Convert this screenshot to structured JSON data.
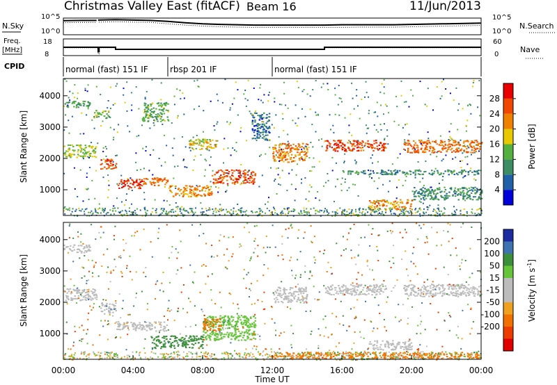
{
  "header": {
    "title": "Christmas Valley East (fitACF)",
    "beam": "Beam 16",
    "date": "11/Jun/2013"
  },
  "summary_panels": {
    "sky_label": "N.Sky",
    "search_label": "N.Search",
    "noise_ticks": [
      "10^5",
      "10^0"
    ],
    "freq_label_1": "Freq.",
    "freq_label_2": "[MHz]",
    "freq_ticks": [
      "18",
      "8"
    ],
    "nave_label": "Nave",
    "nave_ticks": [
      "60",
      "0"
    ],
    "cpid_label": "CPID",
    "cpid_segments": [
      {
        "label": "normal (fast) 151 IF",
        "start_h": 0,
        "end_h": 6
      },
      {
        "label": "rbsp 201 IF",
        "start_h": 6,
        "end_h": 12
      },
      {
        "label": "normal (fast) 151 IF",
        "start_h": 12,
        "end_h": 24
      }
    ]
  },
  "colors": {
    "power_scale": [
      "#0000d8",
      "#2060a8",
      "#3c8c64",
      "#56b040",
      "#e8c800",
      "#f08000",
      "#f04800",
      "#e80000"
    ],
    "velocity_scale": [
      "#1c2ca0",
      "#3e72b0",
      "#3b8f3b",
      "#66c43a",
      "#bcbcbc",
      "#bcbcbc",
      "#f0a020",
      "#f07000",
      "#ec3c00",
      "#e00000"
    ]
  },
  "chart_data": [
    {
      "type": "line",
      "title": "N.Sky / N.Search",
      "x": [
        0,
        1,
        1.9,
        2,
        3,
        4,
        5,
        6,
        7,
        8,
        9,
        10,
        11,
        12,
        13,
        14,
        15,
        16,
        17,
        18,
        19,
        20,
        21,
        22,
        23,
        24
      ],
      "series": [
        {
          "name": "N.Sky",
          "values": [
            4.2,
            4.3,
            4.3,
            4.4,
            4.5,
            4.4,
            4.3,
            4.0,
            3.6,
            3.3,
            3.1,
            3.0,
            2.9,
            2.9,
            2.9,
            2.9,
            2.9,
            3.0,
            3.0,
            3.0,
            3.0,
            3.1,
            3.2,
            3.3,
            3.4,
            3.5
          ]
        },
        {
          "name": "N.Search",
          "values": [
            3.6,
            3.7,
            3.7,
            3.8,
            3.9,
            3.8,
            3.7,
            3.3,
            2.9,
            2.6,
            2.4,
            2.3,
            2.2,
            2.2,
            2.2,
            2.2,
            2.2,
            2.2,
            2.3,
            2.3,
            2.3,
            2.4,
            2.5,
            2.6,
            2.7,
            2.8
          ]
        }
      ],
      "ylim": [
        0,
        5
      ]
    },
    {
      "type": "line",
      "title": "Freq. / Nave",
      "x": [
        0,
        1.9,
        2.0,
        2.05,
        2.85,
        3.0,
        6,
        8,
        12,
        14,
        14.9,
        15.0,
        20,
        24
      ],
      "series": [
        {
          "name": "Freq.",
          "values": [
            14,
            14,
            6.5,
            14,
            14,
            10.5,
            10.5,
            10.5,
            10.5,
            10.5,
            10.5,
            14,
            14,
            14
          ]
        },
        {
          "name": "Nave",
          "values": [
            28,
            28,
            6,
            28,
            28,
            22,
            22,
            22,
            22,
            22,
            22,
            28,
            28,
            28
          ]
        }
      ],
      "ylim_freq": [
        8,
        18
      ],
      "ylim_nave": [
        0,
        60
      ]
    },
    {
      "type": "heatmap",
      "title": "Power",
      "xlabel": "Time UT",
      "ylabel": "Slant Range [km]",
      "x_ticks": [
        "00:00",
        "04:00",
        "08:00",
        "12:00",
        "16:00",
        "20:00",
        "00:00"
      ],
      "xlim": [
        0,
        24
      ],
      "y_ticks": [
        1000,
        2000,
        3000,
        4000
      ],
      "ylim": [
        180,
        4550
      ],
      "colorbar": {
        "label": "Power [dB]",
        "ticks": [
          4,
          8,
          12,
          16,
          20,
          24,
          28
        ],
        "range": [
          0,
          32
        ]
      },
      "features": [
        {
          "t": [
            0,
            1.9
          ],
          "r": [
            2050,
            2450
          ],
          "v": 16
        },
        {
          "t": [
            2.1,
            3.0
          ],
          "r": [
            1650,
            2000
          ],
          "v": 26
        },
        {
          "t": [
            3.0,
            4.5
          ],
          "r": [
            1050,
            1350
          ],
          "v": 28
        },
        {
          "t": [
            4.5,
            6.0
          ],
          "r": [
            1150,
            1400
          ],
          "v": 24
        },
        {
          "t": [
            6.0,
            8.5
          ],
          "r": [
            800,
            1150
          ],
          "v": 22
        },
        {
          "t": [
            8.5,
            11.0
          ],
          "r": [
            1200,
            1650
          ],
          "v": 26
        },
        {
          "t": [
            0,
            1.5
          ],
          "r": [
            3650,
            3850
          ],
          "v": 12
        },
        {
          "t": [
            1.7,
            2.7
          ],
          "r": [
            3300,
            3550
          ],
          "v": 14
        },
        {
          "t": [
            4.5,
            6.0
          ],
          "r": [
            3200,
            3800
          ],
          "v": 13
        },
        {
          "t": [
            7.2,
            8.8
          ],
          "r": [
            2300,
            2650
          ],
          "v": 18
        },
        {
          "t": [
            10.8,
            11.8
          ],
          "r": [
            2600,
            3500
          ],
          "v": 7
        },
        {
          "t": [
            12.0,
            14.0
          ],
          "r": [
            1900,
            2500
          ],
          "v": 22
        },
        {
          "t": [
            15.0,
            18.5
          ],
          "r": [
            2250,
            2600
          ],
          "v": 26
        },
        {
          "t": [
            19.5,
            24
          ],
          "r": [
            2200,
            2600
          ],
          "v": 24
        },
        {
          "t": [
            16.0,
            24
          ],
          "r": [
            1500,
            1650
          ],
          "v": 10
        },
        {
          "t": [
            17.5,
            20.0
          ],
          "r": [
            380,
            700
          ],
          "v": 22
        },
        {
          "t": [
            20.0,
            24
          ],
          "r": [
            700,
            1100
          ],
          "v": 10
        }
      ]
    },
    {
      "type": "heatmap",
      "title": "Velocity",
      "xlabel": "Time UT",
      "ylabel": "Slant Range [km]",
      "x_ticks": [
        "00:00",
        "04:00",
        "08:00",
        "12:00",
        "16:00",
        "20:00",
        "00:00"
      ],
      "xlim": [
        0,
        24
      ],
      "y_ticks": [
        1000,
        2000,
        3000,
        4000
      ],
      "ylim": [
        180,
        4550
      ],
      "colorbar": {
        "label": "Velocity [m s^-1]",
        "ticks": [
          200,
          100,
          50,
          15,
          -15,
          -50,
          -100,
          -200
        ],
        "range": [
          -250,
          250
        ]
      },
      "features": [
        {
          "t": [
            0,
            1.9
          ],
          "r": [
            2050,
            2450
          ],
          "v": 0
        },
        {
          "t": [
            2.1,
            3.0
          ],
          "r": [
            1650,
            2000
          ],
          "v": 0
        },
        {
          "t": [
            3.0,
            6.0
          ],
          "r": [
            1100,
            1400
          ],
          "v": 0
        },
        {
          "t": [
            5.0,
            8.0
          ],
          "r": [
            550,
            950
          ],
          "v": 70
        },
        {
          "t": [
            8.0,
            11.0
          ],
          "r": [
            800,
            1600
          ],
          "v": 40
        },
        {
          "t": [
            8.0,
            9.0
          ],
          "r": [
            1100,
            1500
          ],
          "v": -60
        },
        {
          "t": [
            12.0,
            14.0
          ],
          "r": [
            2000,
            2500
          ],
          "v": 0
        },
        {
          "t": [
            15.0,
            18.5
          ],
          "r": [
            2250,
            2600
          ],
          "v": 0
        },
        {
          "t": [
            19.5,
            24
          ],
          "r": [
            2200,
            2600
          ],
          "v": 0
        },
        {
          "t": [
            12.0,
            24
          ],
          "r": [
            220,
            420
          ],
          "v": -60
        },
        {
          "t": [
            17.5,
            20.0
          ],
          "r": [
            500,
            800
          ],
          "v": 0
        },
        {
          "t": [
            0,
            1.5
          ],
          "r": [
            3600,
            3850
          ],
          "v": 0
        }
      ]
    }
  ]
}
